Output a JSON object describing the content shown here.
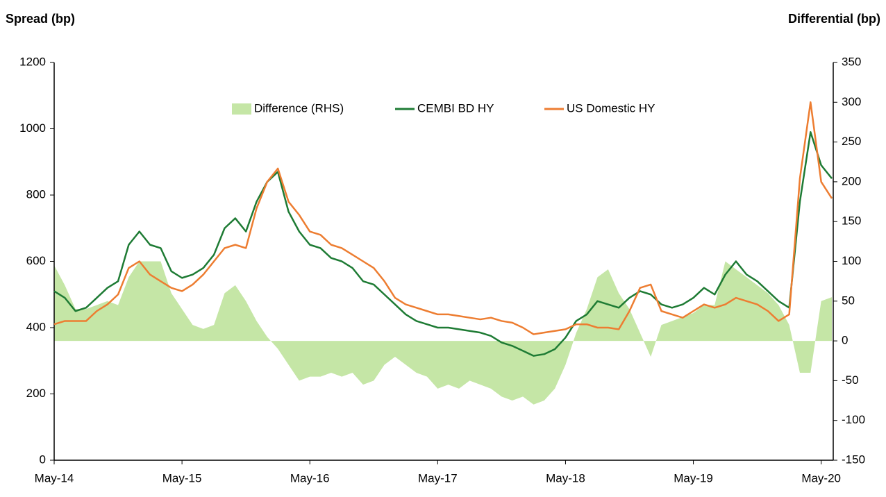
{
  "chart_data": {
    "type": "line",
    "y_label": "Spread (bp)",
    "y2_label": "Differential (bp)",
    "categories": [
      "May-14",
      null,
      null,
      null,
      null,
      null,
      null,
      null,
      null,
      null,
      null,
      null,
      "May-15",
      null,
      null,
      null,
      null,
      null,
      null,
      null,
      null,
      null,
      null,
      null,
      "May-16",
      null,
      null,
      null,
      null,
      null,
      null,
      null,
      null,
      null,
      null,
      null,
      "May-17",
      null,
      null,
      null,
      null,
      null,
      null,
      null,
      null,
      null,
      null,
      null,
      "May-18",
      null,
      null,
      null,
      null,
      null,
      null,
      null,
      null,
      null,
      null,
      null,
      "May-19",
      null,
      null,
      null,
      null,
      null,
      null,
      null,
      null,
      null,
      null,
      null,
      "May-20",
      null
    ],
    "series": [
      {
        "name": "Difference (RHS)",
        "type": "area",
        "axis": "y2",
        "color": "#c5e6a6",
        "values": [
          95,
          70,
          40,
          40,
          45,
          50,
          45,
          80,
          100,
          100,
          100,
          60,
          40,
          20,
          15,
          20,
          60,
          70,
          50,
          25,
          5,
          -10,
          -30,
          -50,
          -45,
          -45,
          -40,
          -45,
          -40,
          -55,
          -50,
          -30,
          -20,
          -30,
          -40,
          -45,
          -60,
          -55,
          -60,
          -50,
          -55,
          -60,
          -70,
          -75,
          -70,
          -80,
          -75,
          -60,
          -30,
          10,
          40,
          80,
          90,
          60,
          40,
          10,
          -20,
          20,
          25,
          30,
          35,
          45,
          45,
          100,
          90,
          80,
          70,
          60,
          45,
          20,
          -40,
          -40,
          50,
          55
        ]
      },
      {
        "name": "CEMBI BD HY",
        "type": "line",
        "axis": "y",
        "color": "#1e7b34",
        "values": [
          510,
          490,
          450,
          460,
          490,
          520,
          540,
          650,
          690,
          650,
          640,
          570,
          550,
          560,
          580,
          620,
          700,
          730,
          690,
          780,
          840,
          870,
          750,
          690,
          650,
          640,
          610,
          600,
          580,
          540,
          530,
          500,
          470,
          440,
          420,
          410,
          400,
          400,
          395,
          390,
          385,
          375,
          355,
          345,
          330,
          315,
          320,
          335,
          370,
          420,
          440,
          480,
          470,
          460,
          490,
          510,
          500,
          470,
          460,
          470,
          490,
          520,
          500,
          560,
          600,
          560,
          540,
          510,
          480,
          460,
          780,
          990,
          890,
          850
        ]
      },
      {
        "name": "US Domestic HY",
        "type": "line",
        "axis": "y",
        "color": "#ed7d31",
        "values": [
          410,
          420,
          420,
          420,
          450,
          470,
          500,
          580,
          600,
          560,
          540,
          520,
          510,
          530,
          560,
          600,
          640,
          650,
          640,
          760,
          840,
          880,
          780,
          740,
          690,
          680,
          650,
          640,
          620,
          600,
          580,
          540,
          490,
          470,
          460,
          450,
          440,
          440,
          435,
          430,
          425,
          430,
          420,
          415,
          400,
          380,
          385,
          390,
          395,
          410,
          410,
          400,
          400,
          395,
          450,
          520,
          530,
          450,
          440,
          430,
          450,
          470,
          460,
          470,
          490,
          480,
          470,
          450,
          420,
          440,
          850,
          1080,
          840,
          790
        ]
      }
    ],
    "ylim": [
      0,
      1200
    ],
    "yticks": [
      0,
      200,
      400,
      600,
      800,
      1000,
      1200
    ],
    "y2lim": [
      -150,
      350
    ],
    "y2ticks": [
      -150,
      -100,
      -50,
      0,
      50,
      100,
      150,
      200,
      250,
      300,
      350
    ],
    "legend": "upper center"
  }
}
